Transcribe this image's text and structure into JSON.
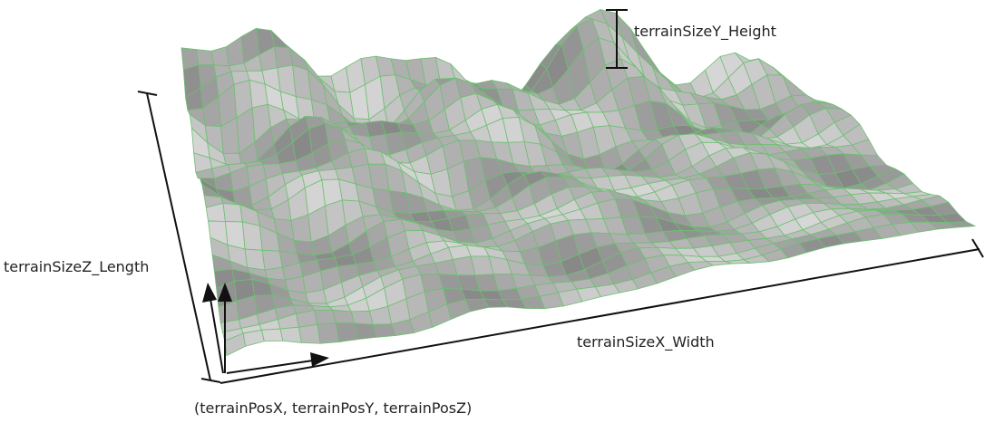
{
  "labels": {
    "height": "terrainSizeY_Height",
    "length": "terrainSizeZ_Length",
    "width": "terrainSizeX_Width",
    "origin": "(terrainPosX, terrainPosY, terrainPosZ)"
  }
}
